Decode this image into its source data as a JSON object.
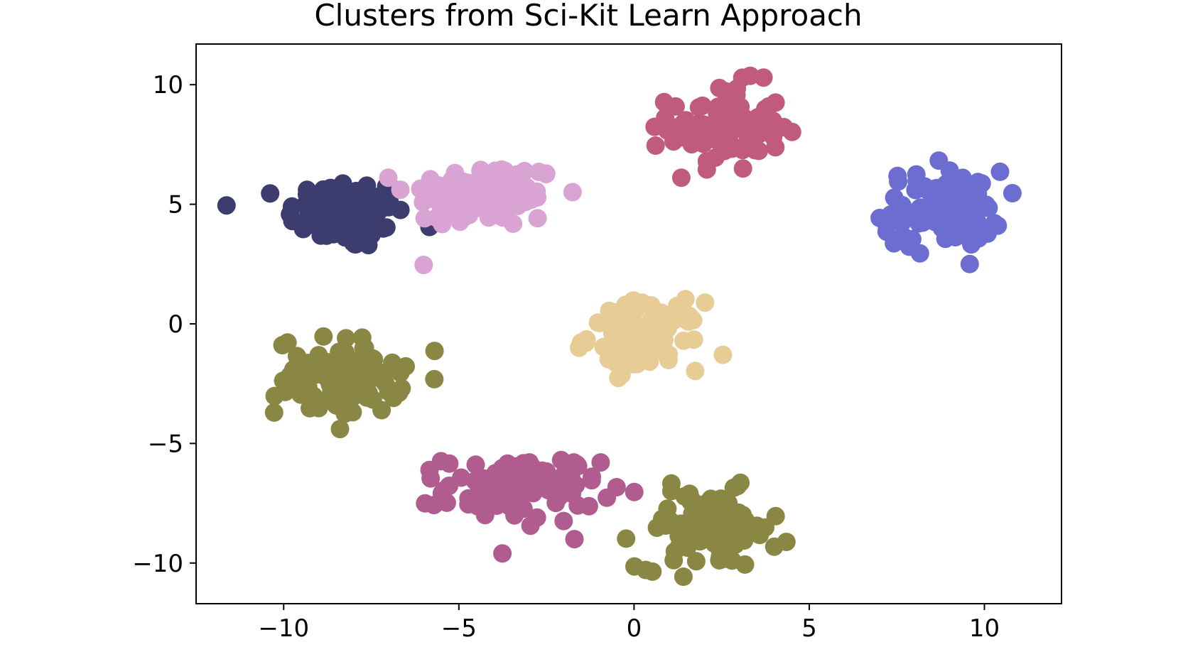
{
  "chart_data": {
    "type": "scatter",
    "title": "Clusters from Sci-Kit Learn Approach",
    "xlabel": "",
    "ylabel": "",
    "xlim": [
      -12.5,
      12.2
    ],
    "ylim": [
      -11.7,
      11.7
    ],
    "x_ticks": [
      -10,
      -5,
      0,
      5,
      10
    ],
    "y_ticks": [
      -10,
      -5,
      0,
      5,
      10
    ],
    "x_tick_labels": [
      "−10",
      "−5",
      "0",
      "5",
      "10"
    ],
    "y_tick_labels": [
      "−10",
      "−5",
      "0",
      "5",
      "10"
    ],
    "grid": false,
    "legend": "none",
    "clusters": [
      {
        "color": "#3d3c6e",
        "center": [
          -8.2,
          4.6
        ],
        "spread": [
          0.85,
          0.75
        ],
        "count": 100
      },
      {
        "color": "#d9a3d3",
        "center": [
          -4.3,
          5.4
        ],
        "spread": [
          1.1,
          0.7
        ],
        "count": 100
      },
      {
        "color": "#c05b7e",
        "center": [
          2.6,
          8.2
        ],
        "spread": [
          0.8,
          0.9
        ],
        "count": 100
      },
      {
        "color": "#6b6ed0",
        "center": [
          8.8,
          4.8
        ],
        "spread": [
          0.85,
          0.8
        ],
        "count": 100
      },
      {
        "color": "#e7cc95",
        "center": [
          0.3,
          -0.5
        ],
        "spread": [
          0.8,
          0.7
        ],
        "count": 100
      },
      {
        "color": "#8a8745",
        "center": [
          -8.4,
          -2.2
        ],
        "spread": [
          0.9,
          0.8
        ],
        "count": 100
      },
      {
        "color": "#b05c8e",
        "center": [
          -3.2,
          -6.9
        ],
        "spread": [
          1.1,
          0.7
        ],
        "count": 100
      },
      {
        "color": "#8a8745",
        "center": [
          2.1,
          -8.6
        ],
        "spread": [
          1.0,
          0.8
        ],
        "count": 100
      }
    ]
  }
}
